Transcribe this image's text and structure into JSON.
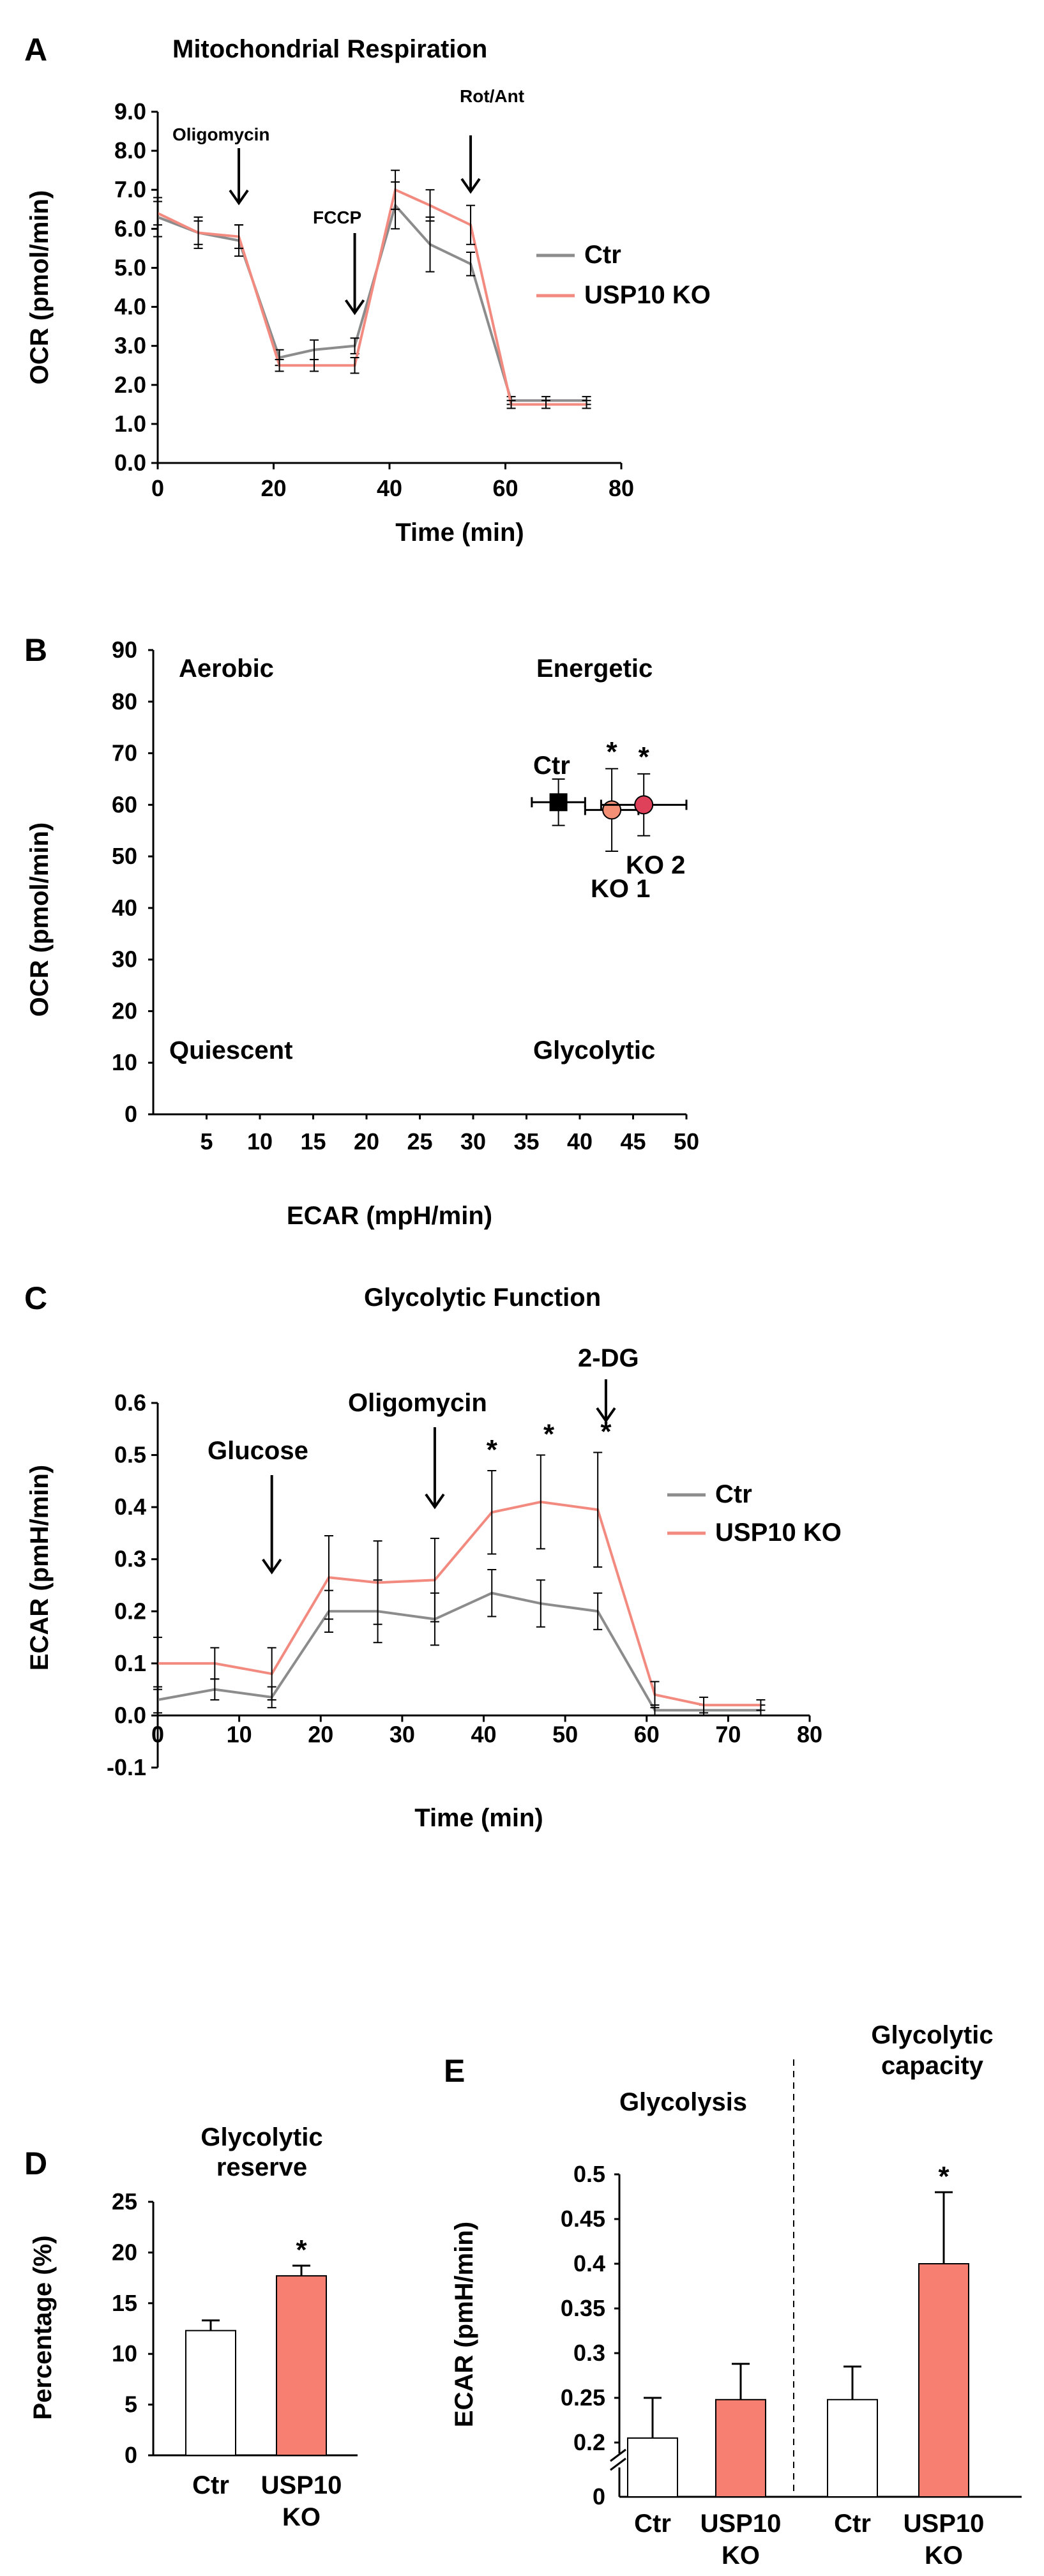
{
  "colors": {
    "ctr": "#8c8c8c",
    "ko": "#f28a80",
    "ko_bar": "#f77f72",
    "ctr_bar": "#ffffff",
    "ko1_point": "#f38f74",
    "ko2_point": "#e0415a",
    "ctr_point": "#000000"
  },
  "panel_a": {
    "letter": "A",
    "chart_data": {
      "type": "line",
      "title": "Mitochondrial Respiration",
      "xlabel": "Time (min)",
      "ylabel": "OCR (pmol/min)",
      "xlim": [
        0,
        80
      ],
      "ylim": [
        0,
        9
      ],
      "xticks": [
        0,
        20,
        40,
        60,
        80
      ],
      "yticks": [
        "0.0",
        "1.0",
        "2.0",
        "3.0",
        "4.0",
        "5.0",
        "6.0",
        "7.0",
        "8.0",
        "9.0"
      ],
      "x": [
        0,
        7,
        14,
        21,
        27,
        34,
        41,
        47,
        54,
        61,
        67,
        74
      ],
      "series": [
        {
          "name": "Ctr",
          "values": [
            6.3,
            5.9,
            5.7,
            2.7,
            2.9,
            3.0,
            6.6,
            5.6,
            5.1,
            1.6,
            1.6,
            1.6
          ],
          "errors": [
            0.5,
            0.4,
            0.4,
            0.2,
            0.25,
            0.2,
            0.6,
            0.7,
            0.3,
            0.1,
            0.1,
            0.1
          ]
        },
        {
          "name": "USP10 KO",
          "values": [
            6.4,
            5.9,
            5.8,
            2.5,
            2.5,
            2.5,
            7.0,
            6.6,
            6.1,
            1.5,
            1.5,
            1.5
          ],
          "errors": [
            0.3,
            0.3,
            0.3,
            0.15,
            0.15,
            0.2,
            0.5,
            0.4,
            0.5,
            0.1,
            0.1,
            0.1
          ]
        }
      ],
      "legend": [
        "Ctr",
        "USP10 KO"
      ],
      "annotations": [
        {
          "label": "Oligomycin",
          "x": 14
        },
        {
          "label": "FCCP",
          "x": 34
        },
        {
          "label": "Rot/Ant",
          "x": 54
        }
      ]
    }
  },
  "panel_b": {
    "letter": "B",
    "chart_data": {
      "type": "scatter",
      "xlabel": "ECAR (mpH/min)",
      "ylabel": "OCR (pmol/min)",
      "xlim": [
        0,
        50
      ],
      "ylim": [
        0,
        90
      ],
      "xticks": [
        5,
        10,
        15,
        20,
        25,
        30,
        35,
        40,
        45,
        50
      ],
      "yticks": [
        0,
        10,
        20,
        30,
        40,
        50,
        60,
        70,
        80,
        90
      ],
      "quadrants": {
        "top_left": "Aerobic",
        "top_right": "Energetic",
        "bottom_left": "Quiescent",
        "bottom_right": "Glycolytic"
      },
      "points": [
        {
          "label": "Ctr",
          "x": 38,
          "y": 60.5,
          "xerr": 2.5,
          "yerr": 4.5,
          "marker": "square",
          "star": false
        },
        {
          "label": "KO 1",
          "x": 43,
          "y": 59,
          "xerr": 2.5,
          "yerr": 8,
          "marker": "circle",
          "star": true
        },
        {
          "label": "KO 2",
          "x": 46,
          "y": 60,
          "xerr": 4,
          "yerr": 6,
          "marker": "circle",
          "star": true
        }
      ],
      "star_label": "*"
    }
  },
  "panel_c": {
    "letter": "C",
    "chart_data": {
      "type": "line",
      "title": "Glycolytic Function",
      "xlabel": "Time (min)",
      "ylabel": "ECAR (pmH/min)",
      "xlim": [
        0,
        80
      ],
      "ylim": [
        -0.1,
        0.6
      ],
      "xticks": [
        0,
        10,
        20,
        30,
        40,
        50,
        60,
        70,
        80
      ],
      "yticks": [
        "-0.1",
        "0.0",
        "0.1",
        "0.2",
        "0.3",
        "0.4",
        "0.5",
        "0.6"
      ],
      "x": [
        0,
        7,
        14,
        21,
        27,
        34,
        41,
        47,
        54,
        61,
        67,
        74
      ],
      "series": [
        {
          "name": "Ctr",
          "values": [
            0.03,
            0.05,
            0.035,
            0.2,
            0.2,
            0.185,
            0.235,
            0.215,
            0.2,
            0.01,
            0.01,
            0.01
          ],
          "errors": [
            0.025,
            0.02,
            0.02,
            0.04,
            0.06,
            0.05,
            0.045,
            0.045,
            0.035,
            0.01,
            0.01,
            0.01
          ]
        },
        {
          "name": "USP10 KO",
          "values": [
            0.1,
            0.1,
            0.08,
            0.265,
            0.255,
            0.26,
            0.39,
            0.41,
            0.395,
            0.04,
            0.02,
            0.02
          ],
          "errors": [
            0.05,
            0.03,
            0.05,
            0.08,
            0.08,
            0.08,
            0.08,
            0.09,
            0.11,
            0.025,
            0.015,
            0.01
          ]
        }
      ],
      "legend": [
        "Ctr",
        "USP10 KO"
      ],
      "annotations": [
        {
          "label": "Glucose",
          "x": 14
        },
        {
          "label": "Oligomycin",
          "x": 34
        },
        {
          "label": "2-DG",
          "x": 55
        }
      ],
      "stars": [
        41,
        48,
        55
      ],
      "star_label": "*"
    }
  },
  "panel_d": {
    "letter": "D",
    "chart_data": {
      "type": "bar",
      "title_lines": [
        "Glycolytic",
        "reserve"
      ],
      "ylabel": "Percentage (%)",
      "ylim": [
        0,
        25
      ],
      "yticks": [
        0,
        5,
        10,
        15,
        20,
        25
      ],
      "categories": [
        [
          "Ctr"
        ],
        [
          "USP10",
          "KO"
        ]
      ],
      "values": [
        12.3,
        17.7
      ],
      "errors": [
        1.0,
        1.0
      ],
      "star_on": [
        false,
        true
      ],
      "star_label": "*"
    }
  },
  "panel_e": {
    "letter": "E",
    "chart_data": {
      "type": "bar",
      "ylabel": "ECAR (pmH/min)",
      "ylim": [
        0.15,
        0.5
      ],
      "yticks": [
        "0.2",
        "0.25",
        "0.3",
        "0.35",
        "0.4",
        "0.45",
        "0.5"
      ],
      "zero_label": "0",
      "groups": [
        {
          "title_lines": [
            "Glycolysis"
          ],
          "categories": [
            [
              "Ctr"
            ],
            [
              "USP10",
              "KO"
            ]
          ],
          "values": [
            0.205,
            0.248
          ],
          "errors": [
            0.045,
            0.04
          ],
          "star_on": [
            false,
            false
          ]
        },
        {
          "title_lines": [
            "Glycolytic",
            "capacity"
          ],
          "categories": [
            [
              "Ctr"
            ],
            [
              "USP10",
              "KO"
            ]
          ],
          "values": [
            0.248,
            0.4
          ],
          "errors": [
            0.037,
            0.08
          ],
          "star_on": [
            false,
            true
          ]
        }
      ],
      "star_label": "*"
    }
  }
}
